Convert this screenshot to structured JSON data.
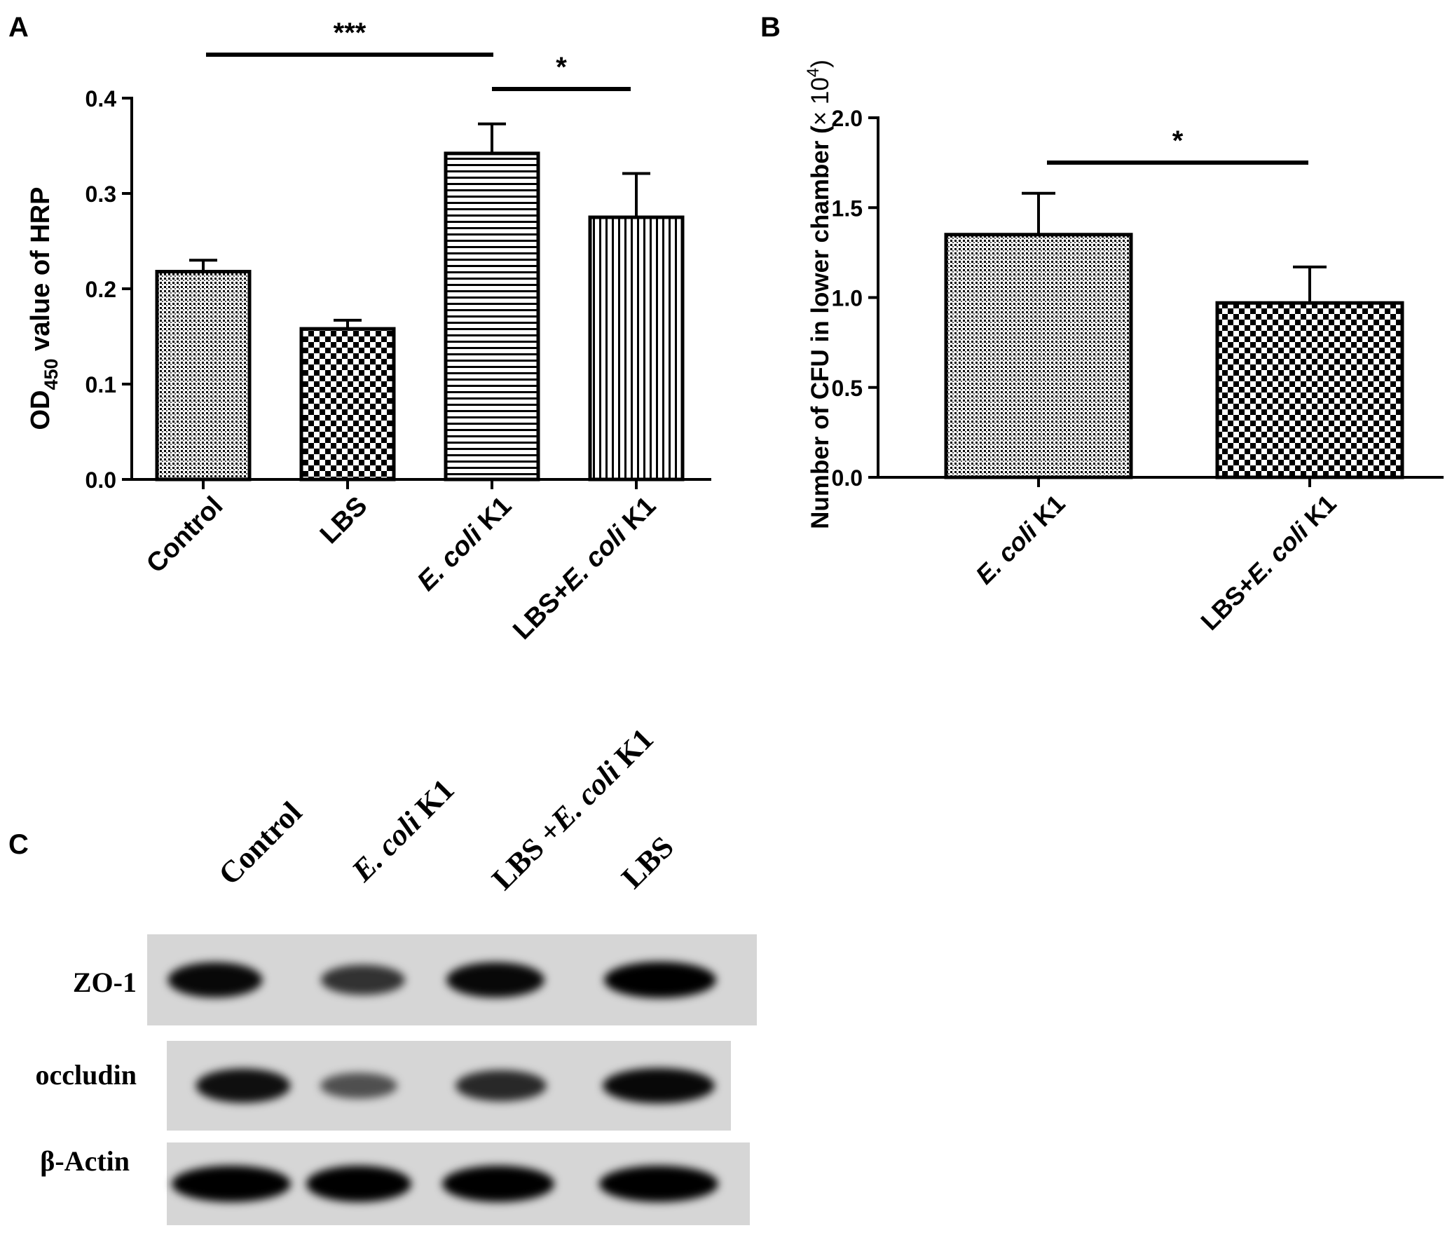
{
  "panels": {
    "a": {
      "letter": "A"
    },
    "b": {
      "letter": "B"
    },
    "c": {
      "letter": "C"
    }
  },
  "chart_data": [
    {
      "panel": "A",
      "type": "bar",
      "categories": [
        "Control",
        "LBS",
        "E. coli K1",
        "LBS+E. coli K1"
      ],
      "category_parts": [
        [
          {
            "t": "Control",
            "i": false
          }
        ],
        [
          {
            "t": "LBS",
            "i": false
          }
        ],
        [
          {
            "t": "E. coli",
            "i": true
          },
          {
            "t": " K1",
            "i": false
          }
        ],
        [
          {
            "t": "LBS+",
            "i": false
          },
          {
            "t": "E. coli",
            "i": true
          },
          {
            "t": " K1",
            "i": false
          }
        ]
      ],
      "values": [
        0.218,
        0.158,
        0.342,
        0.275
      ],
      "errors": [
        0.012,
        0.009,
        0.031,
        0.046
      ],
      "patterns": [
        "dots",
        "checker",
        "hlines",
        "vlines"
      ],
      "ylabel_pre": "OD",
      "ylabel_sub": "450",
      "ylabel_post": " value of HRP",
      "ylim": [
        0,
        0.4
      ],
      "yticks": [
        0.0,
        0.1,
        0.2,
        0.3,
        0.4
      ],
      "yticklabels": [
        "0.0",
        "0.1",
        "0.2",
        "0.3",
        "0.4"
      ],
      "significance": [
        {
          "from": 0,
          "to": 2,
          "label": "***"
        },
        {
          "from": 2,
          "to": 3,
          "label": "*"
        }
      ]
    },
    {
      "panel": "B",
      "type": "bar",
      "categories": [
        "E. coli K1",
        "LBS+E. coli K1"
      ],
      "category_parts": [
        [
          {
            "t": "E. coli",
            "i": true
          },
          {
            "t": " K1",
            "i": false
          }
        ],
        [
          {
            "t": "LBS+",
            "i": false
          },
          {
            "t": "E. coli",
            "i": true
          },
          {
            "t": " K1",
            "i": false
          }
        ]
      ],
      "values": [
        1.35,
        0.97
      ],
      "errors": [
        0.23,
        0.2
      ],
      "patterns": [
        "dots",
        "checker"
      ],
      "ylabel_main": "Number of CFU in lower chamber (",
      "ylabel_times": "×",
      "ylabel_base": " 10",
      "ylabel_exp": "4",
      "ylabel_close": ")",
      "ylim": [
        0,
        2.0
      ],
      "yticks": [
        0.0,
        0.5,
        1.0,
        1.5,
        2.0
      ],
      "yticklabels": [
        "0.0",
        "0.5",
        "1.0",
        "1.5",
        "2.0"
      ],
      "significance": [
        {
          "from": 0,
          "to": 1,
          "label": "*"
        }
      ]
    }
  ],
  "western_blot": {
    "lanes": [
      [
        {
          "t": "Control",
          "i": false
        }
      ],
      [
        {
          "t": "E. coli",
          "i": true
        },
        {
          "t": " K1",
          "i": false
        }
      ],
      [
        {
          "t": "LBS +",
          "i": false
        },
        {
          "t": "E. coli",
          "i": true
        },
        {
          "t": " K1",
          "i": false
        }
      ],
      [
        {
          "t": "LBS",
          "i": false
        }
      ]
    ],
    "rows": [
      {
        "label": "ZO-1",
        "intensity": [
          0.95,
          0.7,
          0.95,
          1.0
        ]
      },
      {
        "label": "occludin",
        "intensity": [
          0.9,
          0.5,
          0.75,
          0.95
        ]
      },
      {
        "label": "β-Actin",
        "intensity": [
          1.0,
          1.0,
          1.0,
          1.0
        ]
      }
    ]
  }
}
